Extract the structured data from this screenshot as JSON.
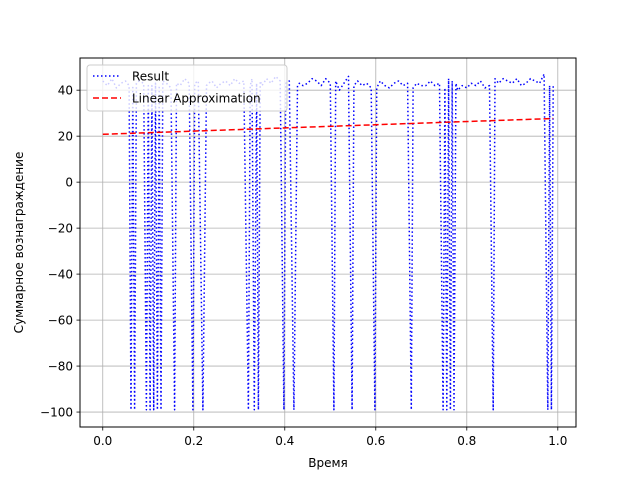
{
  "chart_data": {
    "type": "line",
    "title": "",
    "xlabel": "Время",
    "ylabel": "Суммарное вознаграждение",
    "xlim": [
      -0.05,
      1.04
    ],
    "ylim": [
      -106.5,
      54
    ],
    "xticks": [
      0.0,
      0.2,
      0.4,
      0.6,
      0.8,
      1.0
    ],
    "xtick_labels": [
      "0.0",
      "0.2",
      "0.4",
      "0.6",
      "0.8",
      "1.0"
    ],
    "yticks": [
      -100,
      -80,
      -60,
      -40,
      -20,
      0,
      20,
      40
    ],
    "ytick_labels": [
      "−100",
      "−80",
      "−60",
      "−40",
      "−20",
      "0",
      "20",
      "40"
    ],
    "grid": true,
    "legend_position": "top-left",
    "series": [
      {
        "name": "Result",
        "style": "dotted",
        "color": "#0000ff",
        "x": [
          0.0,
          0.01,
          0.02,
          0.03,
          0.04,
          0.05,
          0.058,
          0.062,
          0.066,
          0.07,
          0.074,
          0.08,
          0.09,
          0.096,
          0.1,
          0.104,
          0.108,
          0.112,
          0.116,
          0.12,
          0.124,
          0.128,
          0.132,
          0.14,
          0.15,
          0.158,
          0.162,
          0.17,
          0.18,
          0.19,
          0.198,
          0.202,
          0.21,
          0.22,
          0.228,
          0.232,
          0.24,
          0.25,
          0.26,
          0.27,
          0.28,
          0.29,
          0.3,
          0.31,
          0.32,
          0.324,
          0.328,
          0.333,
          0.338,
          0.342,
          0.346,
          0.35,
          0.36,
          0.37,
          0.38,
          0.39,
          0.398,
          0.402,
          0.41,
          0.42,
          0.428,
          0.432,
          0.44,
          0.45,
          0.46,
          0.47,
          0.48,
          0.49,
          0.5,
          0.508,
          0.512,
          0.52,
          0.53,
          0.54,
          0.548,
          0.552,
          0.56,
          0.57,
          0.58,
          0.59,
          0.598,
          0.602,
          0.61,
          0.62,
          0.63,
          0.64,
          0.65,
          0.66,
          0.67,
          0.678,
          0.682,
          0.69,
          0.7,
          0.71,
          0.72,
          0.73,
          0.74,
          0.748,
          0.752,
          0.756,
          0.76,
          0.764,
          0.768,
          0.772,
          0.776,
          0.78,
          0.79,
          0.8,
          0.81,
          0.82,
          0.83,
          0.84,
          0.85,
          0.858,
          0.862,
          0.87,
          0.88,
          0.89,
          0.9,
          0.91,
          0.92,
          0.93,
          0.94,
          0.95,
          0.96,
          0.97,
          0.978,
          0.982,
          0.986,
          0.99
        ],
        "y": [
          44,
          42,
          45,
          41,
          43,
          44,
          42,
          -99,
          42,
          -99,
          43,
          44,
          43,
          -99,
          42,
          -99,
          42,
          -99,
          43,
          -99,
          42,
          -99,
          44,
          43,
          41,
          -99,
          43,
          42,
          45,
          43,
          -99,
          43,
          44,
          -99,
          42,
          43,
          44,
          41,
          43,
          44,
          42,
          45,
          43,
          44,
          -99,
          42,
          45,
          -99,
          43,
          -99,
          44,
          42,
          45,
          43,
          46,
          44,
          -99,
          43,
          44,
          -99,
          42,
          43,
          42,
          43,
          45,
          44,
          42,
          45,
          43,
          -99,
          44,
          40,
          43,
          46,
          -99,
          42,
          44,
          42,
          43,
          41,
          -99,
          41,
          44,
          42,
          41,
          43,
          44,
          42,
          43,
          -99,
          41,
          43,
          42,
          42,
          44,
          42,
          43,
          -99,
          41,
          -99,
          45,
          -99,
          44,
          -99,
          43,
          40,
          42,
          41,
          43,
          42,
          44,
          41,
          42,
          -99,
          45,
          43,
          45,
          44,
          43,
          45,
          42,
          43,
          45,
          44,
          43,
          47,
          -99,
          42,
          -99,
          42
        ]
      },
      {
        "name": "Linear Approximation",
        "style": "dashed",
        "color": "#ff0000",
        "x": [
          0.0,
          0.99
        ],
        "y": [
          20.8,
          27.7
        ]
      }
    ]
  }
}
